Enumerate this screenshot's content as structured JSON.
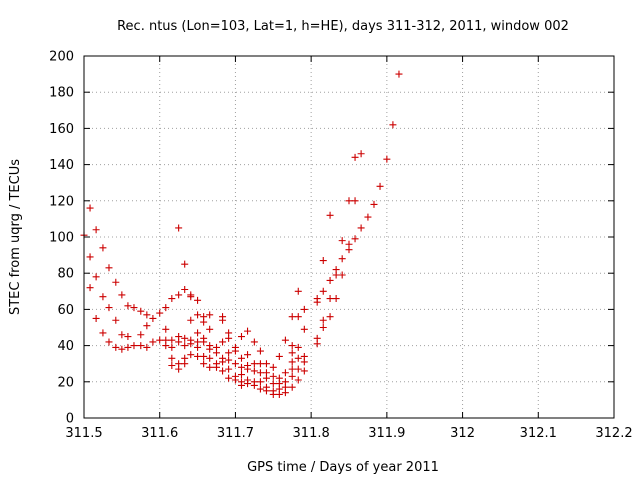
{
  "chart_data": {
    "type": "scatter",
    "title": "Rec. ntus (Lon=103, Lat=1, h=HE), days 311-312, 2011, window 002",
    "xlabel": "GPS time / Days of year 2011",
    "ylabel": "STEC from uqrg / TECUs",
    "xlim": [
      311.5,
      312.2
    ],
    "ylim": [
      0,
      200
    ],
    "xticks": [
      311.5,
      311.6,
      311.7,
      311.8,
      311.9,
      312.0,
      312.1,
      312.2
    ],
    "xtick_labels": [
      "311.5",
      "311.6",
      "311.7",
      "311.8",
      "311.9",
      "312",
      "312.1",
      "312.2"
    ],
    "yticks": [
      0,
      20,
      40,
      60,
      80,
      100,
      120,
      140,
      160,
      180,
      200
    ],
    "ytick_labels": [
      "0",
      "20",
      "40",
      "60",
      "80",
      "100",
      "120",
      "140",
      "160",
      "180",
      "200"
    ],
    "grid": true,
    "marker": "+",
    "color": "#cc0000",
    "points": [
      [
        311.5,
        101
      ],
      [
        311.508,
        116
      ],
      [
        311.508,
        89
      ],
      [
        311.508,
        72
      ],
      [
        311.516,
        104
      ],
      [
        311.516,
        78
      ],
      [
        311.516,
        55
      ],
      [
        311.525,
        94
      ],
      [
        311.525,
        67
      ],
      [
        311.525,
        47
      ],
      [
        311.533,
        83
      ],
      [
        311.533,
        61
      ],
      [
        311.533,
        42
      ],
      [
        311.542,
        75
      ],
      [
        311.542,
        54
      ],
      [
        311.542,
        39
      ],
      [
        311.55,
        68
      ],
      [
        311.55,
        46
      ],
      [
        311.55,
        38
      ],
      [
        311.558,
        62
      ],
      [
        311.558,
        45
      ],
      [
        311.558,
        39
      ],
      [
        311.566,
        61
      ],
      [
        311.566,
        40
      ],
      [
        311.575,
        59
      ],
      [
        311.575,
        46
      ],
      [
        311.575,
        40
      ],
      [
        311.583,
        57
      ],
      [
        311.583,
        51
      ],
      [
        311.583,
        39
      ],
      [
        311.591,
        55
      ],
      [
        311.591,
        42
      ],
      [
        311.6,
        58
      ],
      [
        311.6,
        43
      ],
      [
        311.608,
        61
      ],
      [
        311.608,
        49
      ],
      [
        311.608,
        43
      ],
      [
        311.608,
        40
      ],
      [
        311.616,
        66
      ],
      [
        311.616,
        43
      ],
      [
        311.616,
        39
      ],
      [
        311.616,
        33
      ],
      [
        311.616,
        29
      ],
      [
        311.625,
        68
      ],
      [
        311.625,
        45
      ],
      [
        311.625,
        42
      ],
      [
        311.625,
        30
      ],
      [
        311.625,
        27
      ],
      [
        311.625,
        105
      ],
      [
        311.633,
        85
      ],
      [
        311.633,
        71
      ],
      [
        311.633,
        44
      ],
      [
        311.633,
        40
      ],
      [
        311.633,
        33
      ],
      [
        311.633,
        30
      ],
      [
        311.641,
        68
      ],
      [
        311.641,
        67
      ],
      [
        311.641,
        54
      ],
      [
        311.641,
        43
      ],
      [
        311.641,
        41
      ],
      [
        311.641,
        35
      ],
      [
        311.65,
        65
      ],
      [
        311.65,
        57
      ],
      [
        311.65,
        47
      ],
      [
        311.65,
        42
      ],
      [
        311.65,
        39
      ],
      [
        311.65,
        34
      ],
      [
        311.658,
        56
      ],
      [
        311.658,
        53
      ],
      [
        311.658,
        44
      ],
      [
        311.658,
        42
      ],
      [
        311.658,
        34
      ],
      [
        311.658,
        30
      ],
      [
        311.666,
        57
      ],
      [
        311.666,
        49
      ],
      [
        311.666,
        40
      ],
      [
        311.666,
        38
      ],
      [
        311.666,
        33
      ],
      [
        311.666,
        28
      ],
      [
        311.675,
        39
      ],
      [
        311.675,
        36
      ],
      [
        311.675,
        30
      ],
      [
        311.675,
        28
      ],
      [
        311.683,
        56
      ],
      [
        311.683,
        54
      ],
      [
        311.683,
        42
      ],
      [
        311.683,
        33
      ],
      [
        311.683,
        31
      ],
      [
        311.683,
        26
      ],
      [
        311.691,
        47
      ],
      [
        311.691,
        44
      ],
      [
        311.691,
        36
      ],
      [
        311.691,
        32
      ],
      [
        311.691,
        27
      ],
      [
        311.691,
        22
      ],
      [
        311.7,
        39
      ],
      [
        311.7,
        37
      ],
      [
        311.7,
        30
      ],
      [
        311.7,
        23
      ],
      [
        311.7,
        21
      ],
      [
        311.708,
        45
      ],
      [
        311.708,
        33
      ],
      [
        311.708,
        28
      ],
      [
        311.708,
        24
      ],
      [
        311.708,
        20
      ],
      [
        311.708,
        18
      ],
      [
        311.716,
        48
      ],
      [
        311.716,
        35
      ],
      [
        311.716,
        29
      ],
      [
        311.716,
        27
      ],
      [
        311.716,
        21
      ],
      [
        311.716,
        19
      ],
      [
        311.725,
        42
      ],
      [
        311.725,
        30
      ],
      [
        311.725,
        26
      ],
      [
        311.725,
        20
      ],
      [
        311.725,
        18
      ],
      [
        311.733,
        37
      ],
      [
        311.733,
        30
      ],
      [
        311.733,
        25
      ],
      [
        311.733,
        20
      ],
      [
        311.733,
        16
      ],
      [
        311.741,
        30
      ],
      [
        311.741,
        25
      ],
      [
        311.741,
        22
      ],
      [
        311.741,
        17
      ],
      [
        311.741,
        15
      ],
      [
        311.75,
        28
      ],
      [
        311.75,
        23
      ],
      [
        311.75,
        19
      ],
      [
        311.75,
        15
      ],
      [
        311.75,
        13
      ],
      [
        311.758,
        34
      ],
      [
        311.758,
        22
      ],
      [
        311.758,
        19
      ],
      [
        311.758,
        16
      ],
      [
        311.758,
        13
      ],
      [
        311.766,
        43
      ],
      [
        311.766,
        25
      ],
      [
        311.766,
        20
      ],
      [
        311.766,
        17
      ],
      [
        311.766,
        14
      ],
      [
        311.775,
        56
      ],
      [
        311.775,
        40
      ],
      [
        311.775,
        36
      ],
      [
        311.775,
        31
      ],
      [
        311.775,
        27
      ],
      [
        311.775,
        23
      ],
      [
        311.775,
        17
      ],
      [
        311.783,
        70
      ],
      [
        311.783,
        56
      ],
      [
        311.783,
        39
      ],
      [
        311.783,
        33
      ],
      [
        311.783,
        27
      ],
      [
        311.783,
        21
      ],
      [
        311.791,
        60
      ],
      [
        311.791,
        49
      ],
      [
        311.791,
        34
      ],
      [
        311.791,
        31
      ],
      [
        311.791,
        26
      ],
      [
        311.808,
        66
      ],
      [
        311.808,
        64
      ],
      [
        311.808,
        44
      ],
      [
        311.808,
        41
      ],
      [
        311.816,
        87
      ],
      [
        311.816,
        70
      ],
      [
        311.816,
        54
      ],
      [
        311.816,
        50
      ],
      [
        311.825,
        112
      ],
      [
        311.825,
        76
      ],
      [
        311.825,
        66
      ],
      [
        311.825,
        56
      ],
      [
        311.833,
        82
      ],
      [
        311.833,
        79
      ],
      [
        311.833,
        66
      ],
      [
        311.841,
        98
      ],
      [
        311.841,
        88
      ],
      [
        311.841,
        79
      ],
      [
        311.85,
        120
      ],
      [
        311.85,
        96
      ],
      [
        311.85,
        93
      ],
      [
        311.858,
        144
      ],
      [
        311.858,
        120
      ],
      [
        311.858,
        99
      ],
      [
        311.866,
        146
      ],
      [
        311.866,
        105
      ],
      [
        311.875,
        111
      ],
      [
        311.883,
        118
      ],
      [
        311.891,
        128
      ],
      [
        311.9,
        143
      ],
      [
        311.908,
        162
      ],
      [
        311.916,
        190
      ]
    ]
  }
}
